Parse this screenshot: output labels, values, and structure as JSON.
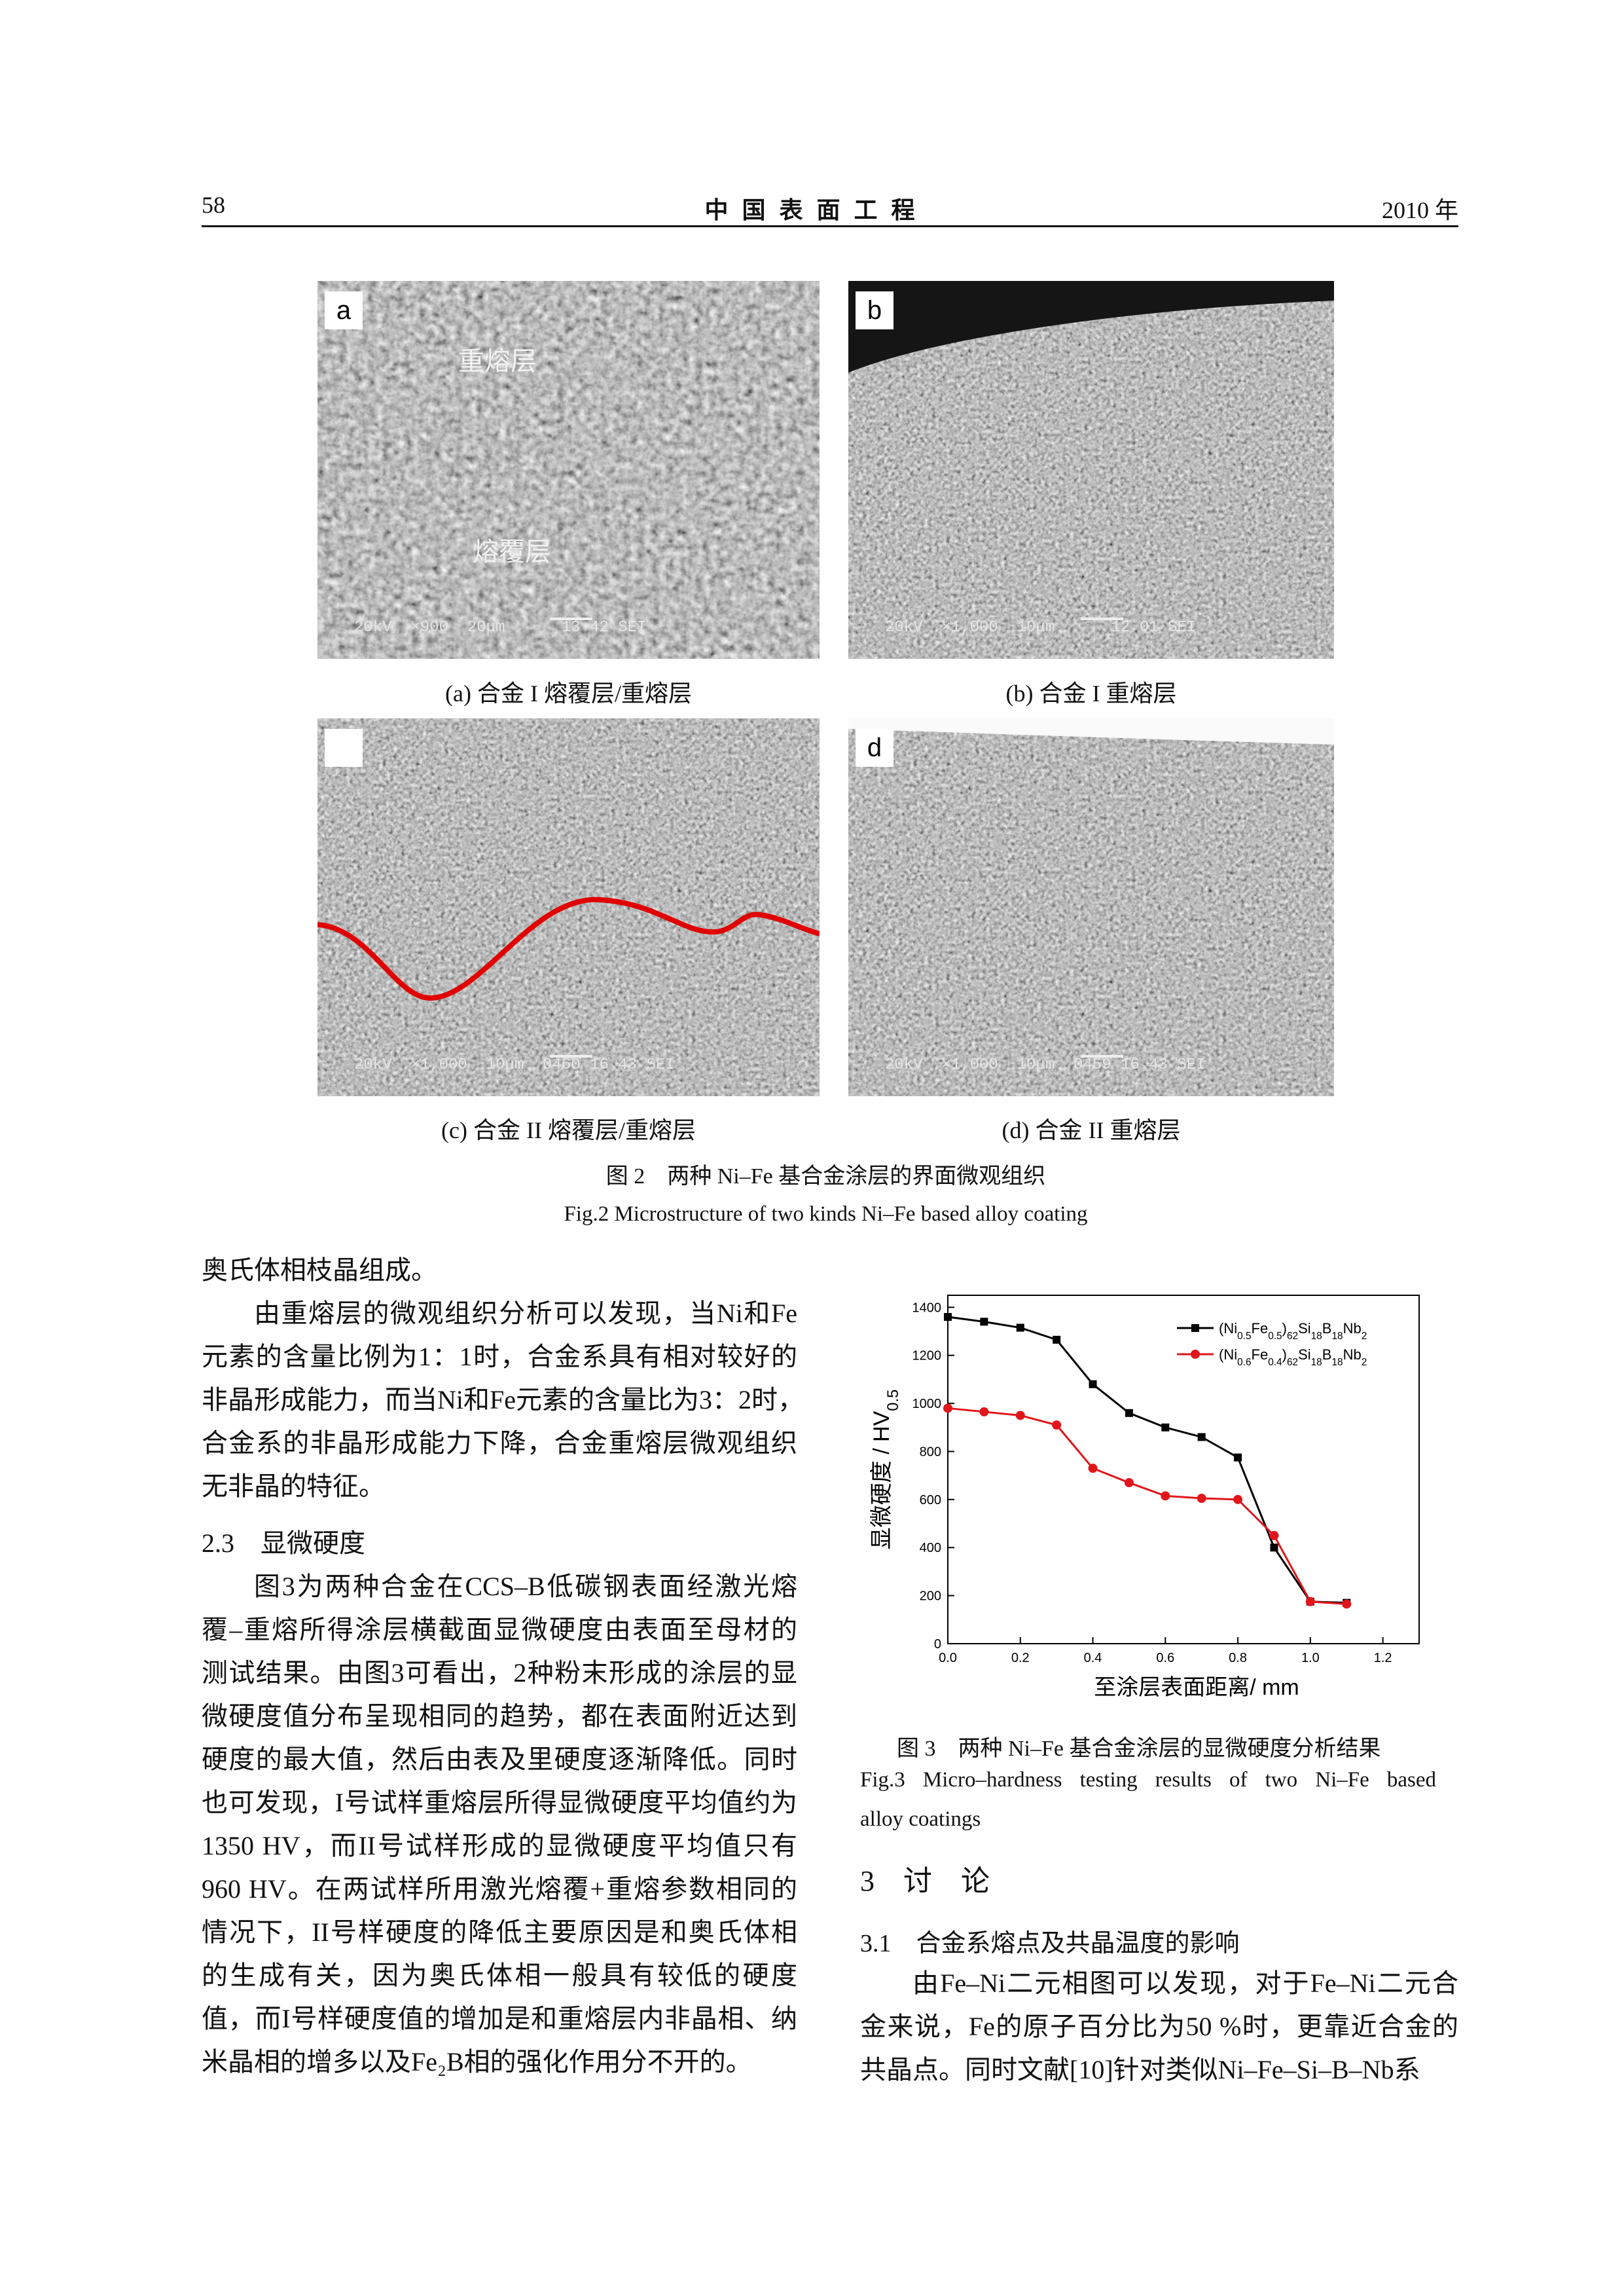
{
  "header": {
    "page": "58",
    "journal": "中 国 表 面 工 程",
    "year": "2010 年"
  },
  "figure2": {
    "panels": [
      {
        "label": "a",
        "annotations": [
          "重熔层",
          "熔覆层"
        ],
        "scale_text": "20kV  ×900  20μm      13 42 SEI",
        "caption": "(a) 合金 I 熔覆层/重熔层"
      },
      {
        "label": "b",
        "scale_text": "20kV  ×1,000  10μm      12 01 SEI",
        "caption": "(b) 合金 I 重熔层"
      },
      {
        "scale_text": "20kV  ×1,000  10μm  0460 16 43 SEI",
        "caption": "(c) 合金 II 熔覆层/重熔层"
      },
      {
        "label": "d",
        "scale_text": "20kV  ×1,000  10μm  0459 16 43 SEI",
        "caption": "(d) 合金 II 重熔层"
      }
    ],
    "caption_cn": "图 2　两种 Ni–Fe 基合金涂层的界面微观组织",
    "caption_en": "Fig.2 Microstructure of two kinds Ni–Fe based alloy coating"
  },
  "left_column": {
    "blocks": [
      {
        "lines": [
          "奥氏体相枝晶组成。"
        ]
      },
      {
        "lines": [
          "由重熔层的微观组织分析可以发现，当Ni和Fe",
          "元素的含量比例为1：1时，合金系具有相对较好的",
          "非晶形成能力，而当Ni和Fe元素的含量比为3：2时，",
          "合金系的非晶形成能力下降，合金重熔层微观组织",
          "无非晶的特征。"
        ]
      },
      {
        "heading": "2.3　显微硬度"
      },
      {
        "lines": [
          "图3为两种合金在CCS–B低碳钢表面经激光熔",
          "覆–重熔所得涂层横截面显微硬度由表面至母材的",
          "测试结果。由图3可看出，2种粉末形成的涂层的显",
          "微硬度值分布呈现相同的趋势，都在表面附近达到",
          "硬度的最大值，然后由表及里硬度逐渐降低。同时",
          "也可发现，I号试样重熔层所得显微硬度平均值约为",
          "1350 HV，而II号试样形成的显微硬度平均值只有",
          "960 HV。在两试样所用激光熔覆+重熔参数相同的",
          "情况下，II号样硬度的降低主要原因是和奥氏体相",
          "的生成有关，因为奥氏体相一般具有较低的硬度",
          "值，而I号样硬度值的增加是和重熔层内非晶相、纳",
          "米晶相的增多以及Fe₂B相的强化作用分不开的。"
        ]
      }
    ]
  },
  "chart_data": {
    "type": "line",
    "x": [
      0,
      0.1,
      0.2,
      0.3,
      0.4,
      0.5,
      0.6,
      0.7,
      0.8,
      0.9,
      1.0,
      1.1
    ],
    "series": [
      {
        "name": "(Ni0.5Fe0.5)62Si18B18Nb2",
        "color": "#000000",
        "marker": "square",
        "values": [
          1360,
          1340,
          1315,
          1265,
          1080,
          960,
          900,
          860,
          775,
          400,
          175,
          170
        ]
      },
      {
        "name": "(Ni0.6Fe0.4)62Si18B18Nb2",
        "color": "#e0161b",
        "marker": "circle",
        "values": [
          980,
          965,
          950,
          910,
          730,
          670,
          615,
          605,
          600,
          450,
          175,
          165
        ]
      }
    ],
    "xlim": [
      0,
      1.3
    ],
    "xticks": [
      {
        "value": 0,
        "label": "0.0"
      },
      {
        "value": 0.2,
        "label": "0.2"
      },
      {
        "value": 0.4,
        "label": "0.4"
      },
      {
        "value": 0.6,
        "label": "0.6"
      },
      {
        "value": 0.8,
        "label": "0.8"
      },
      {
        "value": 1.0,
        "label": "1.0"
      },
      {
        "value": 1.2,
        "label": "1.2"
      }
    ],
    "ylim": [
      0,
      1450
    ],
    "yticks": [
      0,
      200,
      400,
      600,
      800,
      1000,
      1200,
      1400
    ],
    "xlabel": "至涂层表面距离/ mm",
    "ylabel": "显微硬度 / HV0.5",
    "legend": "upper right"
  },
  "figure3": {
    "caption_cn": "图 3　两种 Ni–Fe 基合金涂层的显微硬度分析结果",
    "caption_en": [
      "Fig.3 Micro–hardness testing results of two Ni–Fe based",
      "alloy coatings"
    ]
  },
  "right_column": {
    "section": "3　讨　论",
    "subsection": "3.1　合金系熔点及共晶温度的影响",
    "lines": [
      "由Fe–Ni二元相图可以发现，对于Fe–Ni二元合",
      "金来说，Fe的原子百分比为50 %时，更靠近合金的",
      "共晶点。同时文献[10]针对类似Ni–Fe–Si–B–Nb系"
    ]
  }
}
